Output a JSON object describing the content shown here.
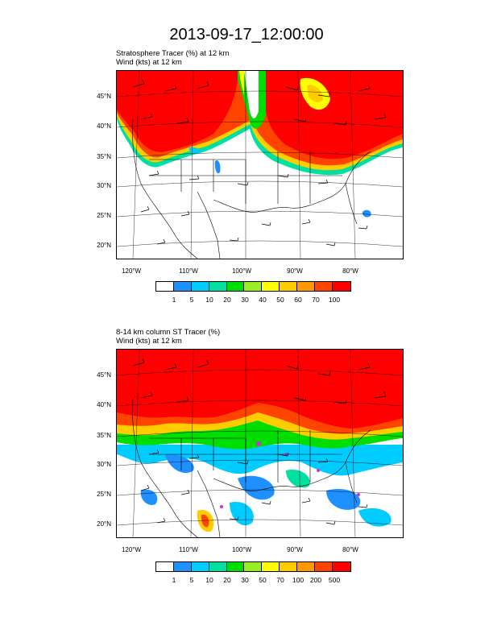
{
  "title": "2013-09-17_12:00:00",
  "colors": [
    "#ffffff",
    "#1e90ff",
    "#00ccff",
    "#00e0a0",
    "#00dd00",
    "#99ee22",
    "#ffff00",
    "#ffcc00",
    "#ff9900",
    "#ff4400",
    "#ff0000"
  ],
  "panels": [
    {
      "line1": "Stratosphere Tracer   (%)     at   12 km",
      "line2": "Wind   (kts)     at   12 km",
      "lat_labels": [
        "45°N",
        "40°N",
        "35°N",
        "30°N",
        "25°N",
        "20°N"
      ],
      "lon_labels": [
        "120°W",
        "110°W",
        "100°W",
        "90°W",
        "80°W"
      ],
      "legend_ticks": [
        "1",
        "5",
        "10",
        "20",
        "30",
        "40",
        "50",
        "60",
        "70",
        "100"
      ]
    },
    {
      "line1": "8-14 km column ST Tracer   (%)",
      "line2": "Wind   (kts)     at   12 km",
      "lat_labels": [
        "45°N",
        "40°N",
        "35°N",
        "30°N",
        "25°N",
        "20°N"
      ],
      "lon_labels": [
        "120°W",
        "110°W",
        "100°W",
        "90°W",
        "80°W"
      ],
      "legend_ticks": [
        "1",
        "5",
        "10",
        "20",
        "30",
        "50",
        "70",
        "100",
        "200",
        "500"
      ]
    }
  ]
}
